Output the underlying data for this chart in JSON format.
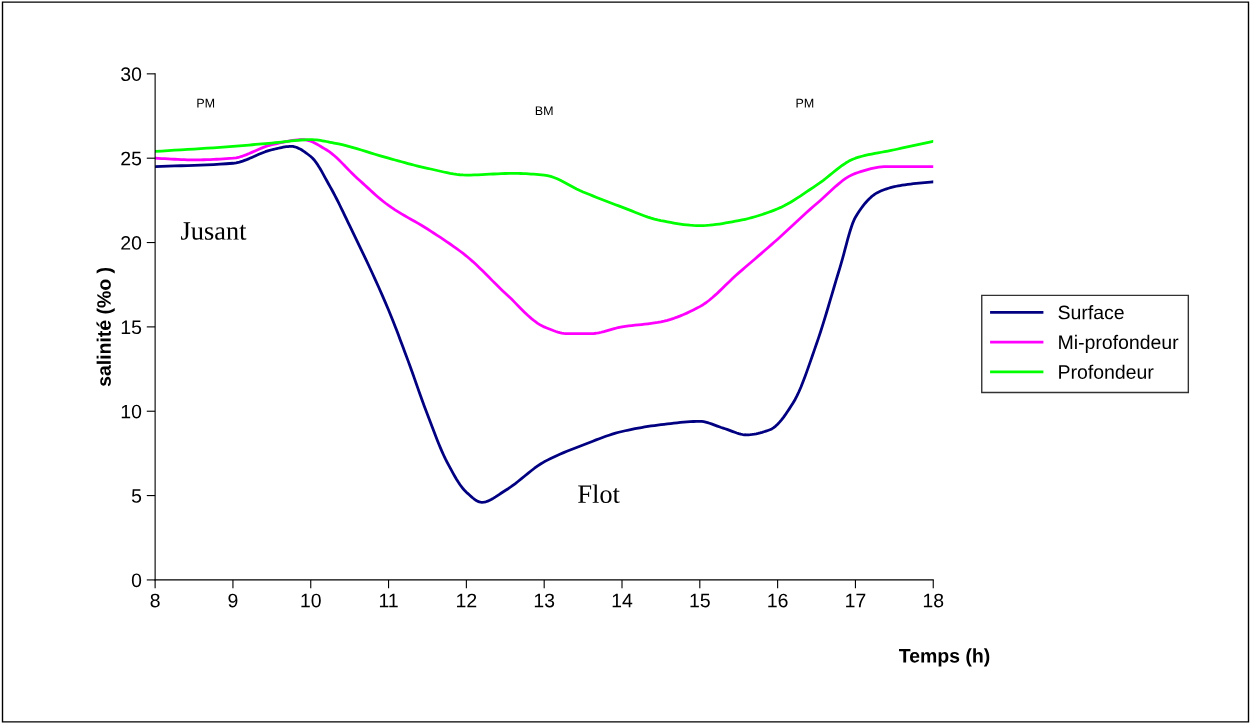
{
  "chart_data": {
    "type": "line",
    "xlabel": "Temps (h)",
    "ylabel": "salinité (%o )",
    "xlim": [
      8,
      18
    ],
    "xticks": [
      8,
      9,
      10,
      11,
      12,
      13,
      14,
      15,
      16,
      17,
      18
    ],
    "ylim": [
      0,
      30
    ],
    "yticks": [
      0,
      5,
      10,
      15,
      20,
      25,
      30
    ],
    "grid": false,
    "legend": "right",
    "marker": "none",
    "line_style": "solid",
    "series": [
      {
        "name": "Surface",
        "color": "#000080",
        "x": [
          8,
          9,
          9.5,
          9.75,
          10,
          10.25,
          10.5,
          11,
          11.25,
          11.5,
          11.75,
          12,
          12.2,
          12.5,
          13,
          13.5,
          14,
          14.5,
          15,
          15.3,
          15.6,
          15.9,
          16.2,
          16.5,
          16.8,
          17,
          17.3,
          17.6,
          18
        ],
        "values": [
          24.5,
          24.7,
          25.5,
          25.7,
          25.1,
          23.3,
          21,
          16,
          13,
          9.8,
          7,
          5.2,
          4.6,
          5.3,
          7,
          8,
          8.8,
          9.2,
          9.4,
          9.0,
          8.6,
          8.9,
          10.5,
          14,
          18.5,
          21.5,
          23,
          23.4,
          23.6
        ]
      },
      {
        "name": "Mi-profondeur",
        "color": "#ff00ff",
        "x": [
          8,
          8.5,
          9,
          9.5,
          9.9,
          10.2,
          10.6,
          11,
          11.5,
          12,
          12.5,
          13,
          13.3,
          13.6,
          14,
          14.5,
          15,
          15.5,
          16,
          16.5,
          17,
          17.4,
          18
        ],
        "values": [
          25,
          24.9,
          25,
          25.8,
          26.1,
          25.5,
          23.8,
          22.2,
          20.8,
          19.2,
          17,
          15,
          14.6,
          14.6,
          15,
          15.3,
          16.2,
          18.2,
          20.2,
          22.3,
          24.1,
          24.5,
          24.5
        ]
      },
      {
        "name": "Profondeur",
        "color": "#00ff00",
        "x": [
          8,
          9,
          9.5,
          10,
          10.3,
          11,
          11.5,
          12,
          12.6,
          13,
          13.5,
          14,
          14.5,
          15,
          15.5,
          16,
          16.5,
          17,
          17.5,
          18
        ],
        "values": [
          25.4,
          25.7,
          25.9,
          26.1,
          25.9,
          25,
          24.4,
          24,
          24.1,
          24,
          23,
          22.1,
          21.3,
          21,
          21.3,
          22,
          23.4,
          25,
          25.5,
          26
        ]
      }
    ],
    "annotations": [
      "PM",
      "BM",
      "PM",
      "Jusant",
      "Flot"
    ]
  }
}
